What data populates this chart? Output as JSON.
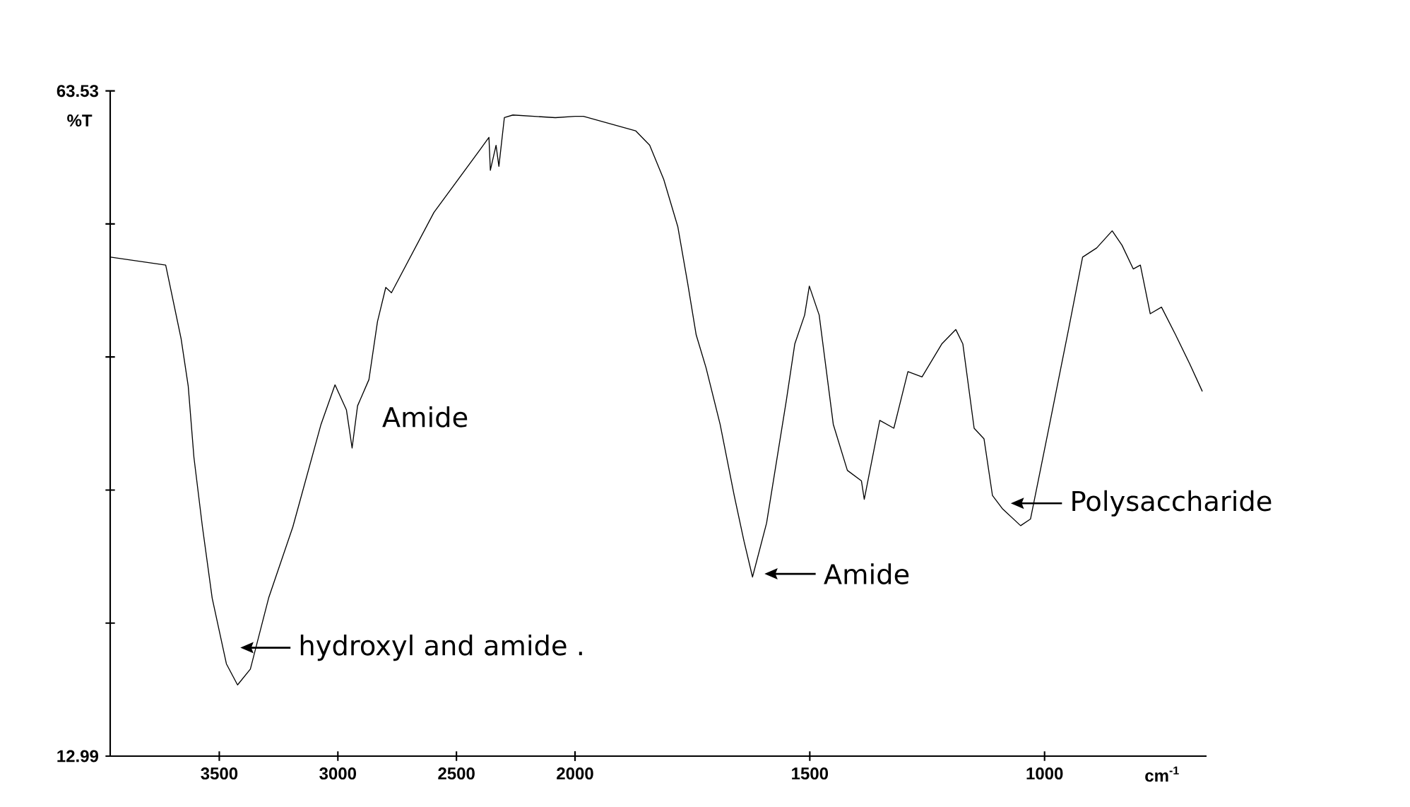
{
  "chart_data": [
    {
      "type": "line",
      "ylabel": "%T",
      "x": [
        3958,
        3726,
        3661,
        3631,
        3607,
        3571,
        3530,
        3470,
        3423,
        3369,
        3292,
        3190,
        3071,
        3012,
        2964,
        2940,
        2917,
        2869,
        2833,
        2798,
        2774,
        2595,
        2399,
        2363,
        2357,
        2333,
        2321,
        2298,
        2262,
        2083,
        2000
      ],
      "values": [
        50.9,
        50.3,
        44.7,
        41.1,
        35.7,
        30.4,
        25.0,
        20.0,
        18.4,
        19.6,
        25.0,
        30.4,
        38.2,
        41.2,
        39.3,
        36.4,
        39.6,
        41.6,
        46.0,
        48.6,
        48.2,
        54.3,
        59.1,
        60.0,
        57.5,
        59.4,
        57.8,
        61.5,
        61.7,
        61.5,
        61.6
      ],
      "color": "#000000",
      "xlim": [
        3960,
        2000
      ],
      "xticks": [
        3500,
        3000,
        2500,
        2000
      ],
      "ylim": [
        12.99,
        63.53
      ],
      "yticks": [
        12.99,
        {
          "value": 23.098,
          "label": null
        },
        {
          "value": 33.206,
          "label": null
        },
        {
          "value": 43.314,
          "label": null
        },
        {
          "value": 53.422,
          "label": null
        },
        63.53
      ],
      "annotations": [
        "Amide",
        "hydroxyl and amide ."
      ]
    },
    {
      "type": "line",
      "xlabel": "cm$^{-1}$",
      "x": [
        2000,
        1982,
        1871,
        1841,
        1811,
        1781,
        1760,
        1742,
        1721,
        1691,
        1661,
        1640,
        1622,
        1592,
        1550,
        1532,
        1511,
        1501,
        1480,
        1450,
        1420,
        1390,
        1384,
        1351,
        1321,
        1291,
        1261,
        1219,
        1189,
        1174,
        1150,
        1129,
        1111,
        1090,
        1051,
        1030,
        991,
        949,
        919,
        889,
        856,
        835,
        811,
        796,
        775,
        751,
        721,
        691,
        664
      ],
      "values": [
        61.6,
        61.6,
        60.5,
        59.4,
        56.8,
        53.2,
        48.9,
        45.0,
        42.5,
        38.2,
        32.8,
        29.3,
        26.6,
        30.7,
        40.0,
        44.3,
        46.5,
        48.7,
        46.5,
        38.2,
        34.7,
        33.9,
        32.5,
        38.5,
        37.9,
        42.2,
        41.8,
        44.3,
        45.4,
        44.3,
        37.9,
        37.1,
        32.8,
        31.8,
        30.5,
        31.0,
        37.9,
        45.4,
        50.9,
        51.6,
        52.9,
        51.8,
        50.0,
        50.3,
        46.6,
        47.1,
        45.0,
        42.8,
        40.7
      ],
      "color": "#000000",
      "xlim": [
        2000,
        655
      ],
      "xticks": [
        {
          "value": 2000,
          "label": null
        },
        1500,
        1000
      ],
      "ylim": [
        12.99,
        63.53
      ],
      "tick_labels": "x",
      "annotations": [
        "Amide",
        "Polysaccharide"
      ]
    }
  ]
}
